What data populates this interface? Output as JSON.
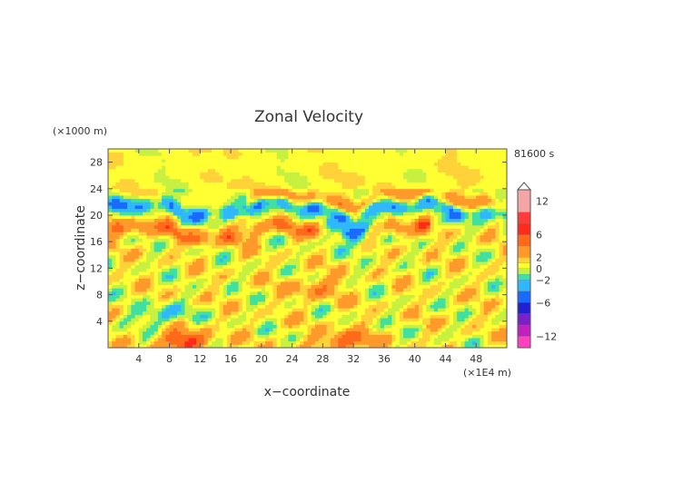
{
  "chart_data": {
    "type": "heatmap",
    "title": "Zonal Velocity",
    "xlabel": "x−coordinate",
    "ylabel": "z−coordinate",
    "x_unit_label": "(×1E4 m)",
    "y_unit_label": "(×1000 m)",
    "time_label": "81600 s",
    "xlim": [
      0,
      52
    ],
    "ylim": [
      0,
      30
    ],
    "x_ticks": [
      "4",
      "8",
      "12",
      "16",
      "20",
      "24",
      "28",
      "32",
      "36",
      "40",
      "44",
      "48"
    ],
    "y_ticks": [
      "4",
      "8",
      "12",
      "16",
      "20",
      "24",
      "28"
    ],
    "colorbar": {
      "ticks": [
        "12",
        "6",
        "2",
        "0",
        "−2",
        "−6",
        "−12"
      ],
      "range": [
        -14,
        14
      ],
      "levels": [
        {
          "from": 10,
          "to": 14,
          "color": "#f4a6a6"
        },
        {
          "from": 8,
          "to": 10,
          "color": "#ff3b3b"
        },
        {
          "from": 6,
          "to": 8,
          "color": "#ff2a1a"
        },
        {
          "from": 4,
          "to": 6,
          "color": "#ff6a1a"
        },
        {
          "from": 2,
          "to": 4,
          "color": "#ff9a2a"
        },
        {
          "from": 1,
          "to": 2,
          "color": "#ffd23a"
        },
        {
          "from": 0,
          "to": 1,
          "color": "#ffff33"
        },
        {
          "from": -1,
          "to": 0,
          "color": "#c8f040"
        },
        {
          "from": -2,
          "to": -1,
          "color": "#40e0a0"
        },
        {
          "from": -4,
          "to": -2,
          "color": "#30b8ff"
        },
        {
          "from": -6,
          "to": -4,
          "color": "#1a6aff"
        },
        {
          "from": -8,
          "to": -6,
          "color": "#2020d0"
        },
        {
          "from": -10,
          "to": -8,
          "color": "#7a20c8"
        },
        {
          "from": -12,
          "to": -10,
          "color": "#c020c0"
        },
        {
          "from": -14,
          "to": -12,
          "color": "#ff40c0"
        }
      ]
    },
    "features": [
      {
        "kind": "band",
        "sign": "negative",
        "x": [
          0,
          52
        ],
        "z": 21,
        "peak": -5
      },
      {
        "kind": "band",
        "sign": "positive",
        "x": [
          0,
          40
        ],
        "z": 17.5,
        "peak": 4
      },
      {
        "kind": "band",
        "sign": "positive",
        "x": [
          20,
          52
        ],
        "z": 22.5,
        "peak": 3
      },
      {
        "kind": "blob",
        "sign": "negative",
        "x": 32,
        "z": 17,
        "peak": -7
      },
      {
        "kind": "blob",
        "sign": "positive",
        "x": 27,
        "z": 9,
        "peak": 3
      },
      {
        "kind": "blob",
        "sign": "negative",
        "x": 7,
        "z": 5,
        "peak": -3
      },
      {
        "kind": "blob",
        "sign": "positive",
        "x": 10,
        "z": 1,
        "peak": 6
      },
      {
        "kind": "blob",
        "sign": "positive",
        "x": 31,
        "z": 1,
        "peak": 5
      }
    ]
  }
}
